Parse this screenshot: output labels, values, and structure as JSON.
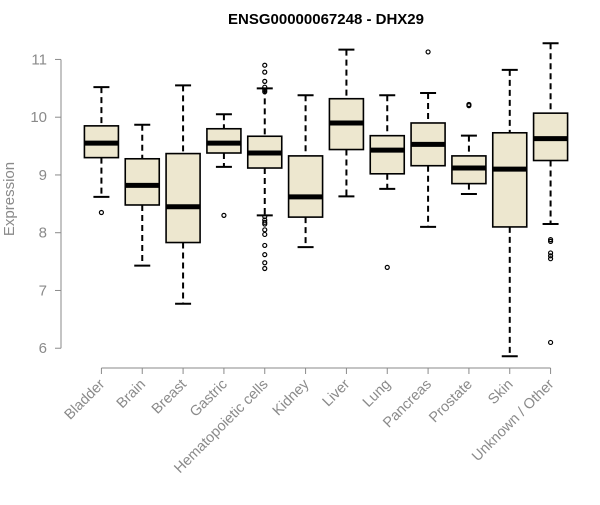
{
  "chart_data": {
    "type": "boxplot",
    "title": "ENSG00000067248 - DHX29",
    "xlabel": "",
    "ylabel": "Expression",
    "ylim": [
      5.9,
      11.25
    ],
    "yticks": [
      6,
      7,
      8,
      9,
      10,
      11
    ],
    "colors": {
      "box_fill": "#ede7cf",
      "line": "#000000",
      "axis": "#8a8a8a",
      "text": "#8a8a8a"
    },
    "categories": [
      "Bladder",
      "Brain",
      "Breast",
      "Gastric",
      "Hematopoietic cells",
      "Kidney",
      "Liver",
      "Lung",
      "Pancreas",
      "Prostate",
      "Skin",
      "Unknown / Other"
    ],
    "boxes": [
      {
        "category": "Bladder",
        "whisker_low": 8.62,
        "q1": 9.3,
        "median": 9.55,
        "q3": 9.85,
        "whisker_high": 10.52,
        "outliers": [
          8.35
        ]
      },
      {
        "category": "Brain",
        "whisker_low": 7.43,
        "q1": 8.48,
        "median": 8.82,
        "q3": 9.28,
        "whisker_high": 9.87,
        "outliers": []
      },
      {
        "category": "Breast",
        "whisker_low": 6.77,
        "q1": 7.83,
        "median": 8.45,
        "q3": 9.37,
        "whisker_high": 10.55,
        "outliers": []
      },
      {
        "category": "Gastric",
        "whisker_low": 9.14,
        "q1": 9.38,
        "median": 9.55,
        "q3": 9.8,
        "whisker_high": 10.05,
        "outliers": [
          8.3
        ]
      },
      {
        "category": "Hematopoietic cells",
        "whisker_low": 8.3,
        "q1": 9.12,
        "median": 9.38,
        "q3": 9.67,
        "whisker_high": 10.5,
        "outliers": [
          10.9,
          10.78,
          10.62,
          10.52,
          10.47,
          10.44,
          8.28,
          8.22,
          8.18,
          8.15,
          8.05,
          7.97,
          7.78,
          7.62,
          7.48,
          7.38
        ]
      },
      {
        "category": "Kidney",
        "whisker_low": 7.75,
        "q1": 8.27,
        "median": 8.62,
        "q3": 9.33,
        "whisker_high": 10.38,
        "outliers": []
      },
      {
        "category": "Liver",
        "whisker_low": 8.63,
        "q1": 9.44,
        "median": 9.9,
        "q3": 10.32,
        "whisker_high": 11.17,
        "outliers": []
      },
      {
        "category": "Lung",
        "whisker_low": 8.76,
        "q1": 9.02,
        "median": 9.43,
        "q3": 9.68,
        "whisker_high": 10.38,
        "outliers": [
          7.4
        ]
      },
      {
        "category": "Pancreas",
        "whisker_low": 8.1,
        "q1": 9.16,
        "median": 9.53,
        "q3": 9.9,
        "whisker_high": 10.42,
        "outliers": [
          11.13
        ]
      },
      {
        "category": "Prostate",
        "whisker_low": 8.67,
        "q1": 8.85,
        "median": 9.12,
        "q3": 9.33,
        "whisker_high": 9.68,
        "outliers": [
          10.2,
          10.22
        ]
      },
      {
        "category": "Skin",
        "whisker_low": 5.86,
        "q1": 8.1,
        "median": 9.1,
        "q3": 9.73,
        "whisker_high": 10.82,
        "outliers": []
      },
      {
        "category": "Unknown / Other",
        "whisker_low": 8.15,
        "q1": 9.25,
        "median": 9.63,
        "q3": 10.07,
        "whisker_high": 11.28,
        "outliers": [
          7.88,
          7.85,
          7.65,
          7.6,
          7.55,
          6.1
        ]
      }
    ]
  }
}
